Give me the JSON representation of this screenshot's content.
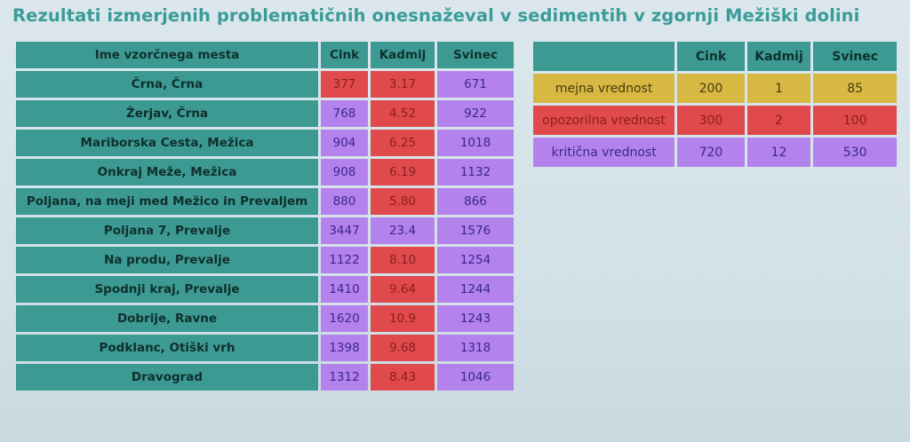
{
  "title": "Rezultati izmerjenih problematičnih onesnaževal v sedimentih v zgornji Mežiški dolini",
  "colors": {
    "teal": "#3c9a93",
    "red": "#e04a4c",
    "purple": "#b482ec",
    "yellow": "#d7b843"
  },
  "results_table": {
    "headers": [
      "Ime vzorčnega mesta",
      "Cink",
      "Kadmij",
      "Svinec"
    ],
    "rows": [
      {
        "name": "Črna, Črna",
        "values": [
          "377",
          "3.17",
          "671"
        ],
        "colors": [
          "red",
          "red",
          "purple"
        ]
      },
      {
        "name": "Žerjav, Črna",
        "values": [
          "768",
          "4.52",
          "922"
        ],
        "colors": [
          "purple",
          "red",
          "purple"
        ]
      },
      {
        "name": "Mariborska Cesta, Mežica",
        "values": [
          "904",
          "6.25",
          "1018"
        ],
        "colors": [
          "purple",
          "red",
          "purple"
        ]
      },
      {
        "name": "Onkraj Meže, Mežica",
        "values": [
          "908",
          "6.19",
          "1132"
        ],
        "colors": [
          "purple",
          "red",
          "purple"
        ]
      },
      {
        "name": "Poljana, na meji med Mežico in Prevaljem",
        "values": [
          "880",
          "5.80",
          "866"
        ],
        "colors": [
          "purple",
          "red",
          "purple"
        ]
      },
      {
        "name": "Poljana 7, Prevalje",
        "values": [
          "3447",
          "23.4",
          "1576"
        ],
        "colors": [
          "purple",
          "purple",
          "purple"
        ]
      },
      {
        "name": "Na produ, Prevalje",
        "values": [
          "1122",
          "8.10",
          "1254"
        ],
        "colors": [
          "purple",
          "red",
          "purple"
        ]
      },
      {
        "name": "Spodnji kraj, Prevalje",
        "values": [
          "1410",
          "9.64",
          "1244"
        ],
        "colors": [
          "purple",
          "red",
          "purple"
        ]
      },
      {
        "name": "Dobrije, Ravne",
        "values": [
          "1620",
          "10.9",
          "1243"
        ],
        "colors": [
          "purple",
          "red",
          "purple"
        ]
      },
      {
        "name": "Podklanc, Otiški vrh",
        "values": [
          "1398",
          "9.68",
          "1318"
        ],
        "colors": [
          "purple",
          "red",
          "purple"
        ]
      },
      {
        "name": "Dravograd",
        "values": [
          "1312",
          "8.43",
          "1046"
        ],
        "colors": [
          "purple",
          "red",
          "purple"
        ]
      }
    ]
  },
  "limits_table": {
    "headers": [
      "",
      "Cink",
      "Kadmij",
      "Svinec"
    ],
    "rows": [
      {
        "name": "mejna vrednost",
        "values": [
          "200",
          "1",
          "85"
        ],
        "color": "yellow"
      },
      {
        "name": "opozorilna vrednost",
        "values": [
          "300",
          "2",
          "100"
        ],
        "color": "red"
      },
      {
        "name": "kritična vrednost",
        "values": [
          "720",
          "12",
          "530"
        ],
        "color": "purple"
      }
    ]
  }
}
